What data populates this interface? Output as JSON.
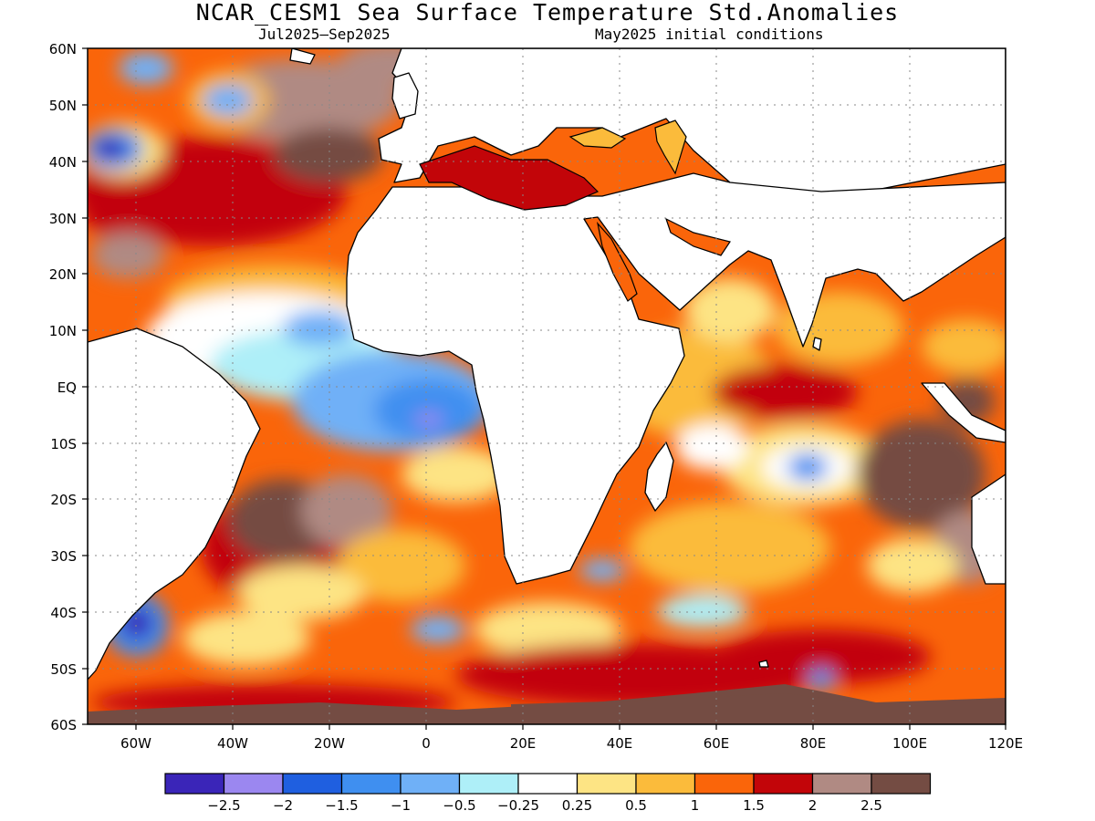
{
  "title": "NCAR_CESM1 Sea Surface Temperature Std.Anomalies",
  "period": "Jul2025–Sep2025",
  "init": "May2025 initial conditions",
  "lat_labels": [
    "60N",
    "50N",
    "40N",
    "30N",
    "20N",
    "10N",
    "EQ",
    "10S",
    "20S",
    "30S",
    "40S",
    "50S",
    "60S"
  ],
  "lon_labels": [
    "60W",
    "40W",
    "20W",
    "0",
    "20E",
    "40E",
    "60E",
    "80E",
    "100E",
    "120E"
  ],
  "colorbar": {
    "colors": [
      "#3a25b8",
      "#9b87f0",
      "#1f5fe0",
      "#3f8ff0",
      "#6fb0f7",
      "#aeeff8",
      "#ffffff",
      "#fde484",
      "#fbbb3b",
      "#fa650a",
      "#c20509",
      "#b08a83",
      "#744c43"
    ],
    "labels": [
      "−2.5",
      "−2",
      "−1.5",
      "−1",
      "−0.5",
      "−0.25",
      "0.25",
      "0.5",
      "1",
      "1.5",
      "2",
      "2.5"
    ]
  }
}
